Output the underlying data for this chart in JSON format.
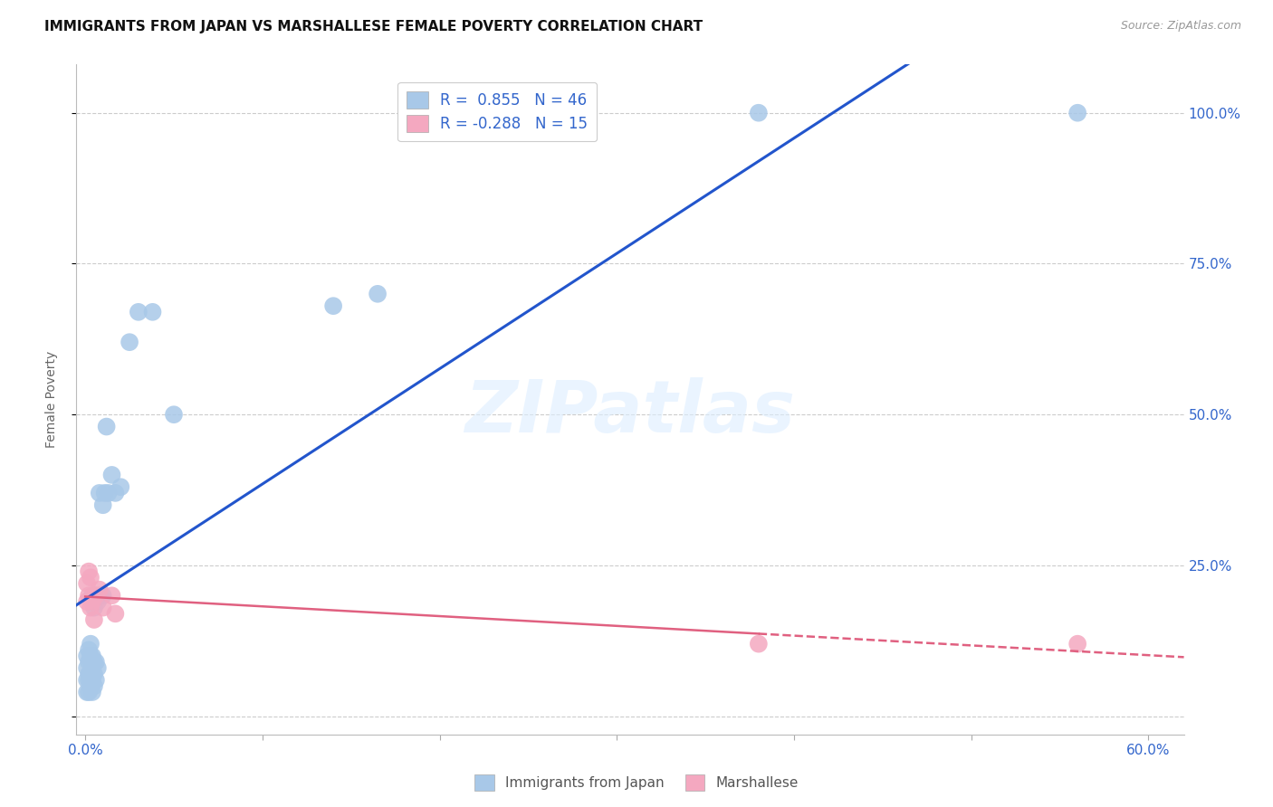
{
  "title": "IMMIGRANTS FROM JAPAN VS MARSHALLESE FEMALE POVERTY CORRELATION CHART",
  "source": "Source: ZipAtlas.com",
  "ylabel": "Female Poverty",
  "blue_R": 0.855,
  "blue_N": 46,
  "pink_R": -0.288,
  "pink_N": 15,
  "blue_color": "#a8c8e8",
  "pink_color": "#f4a8c0",
  "blue_line_color": "#2255cc",
  "pink_line_color": "#e06080",
  "legend_label_blue": "Immigrants from Japan",
  "legend_label_pink": "Marshallese",
  "watermark": "ZIPatlas",
  "blue_points_x": [
    0.001,
    0.001,
    0.001,
    0.001,
    0.002,
    0.002,
    0.002,
    0.002,
    0.002,
    0.003,
    0.003,
    0.003,
    0.003,
    0.004,
    0.004,
    0.004,
    0.004,
    0.004,
    0.005,
    0.005,
    0.005,
    0.005,
    0.006,
    0.006,
    0.006,
    0.007,
    0.007,
    0.008,
    0.008,
    0.009,
    0.01,
    0.01,
    0.011,
    0.012,
    0.013,
    0.015,
    0.017,
    0.02,
    0.025,
    0.03,
    0.038,
    0.05,
    0.14,
    0.165,
    0.38,
    0.56
  ],
  "blue_points_y": [
    0.04,
    0.06,
    0.08,
    0.1,
    0.04,
    0.06,
    0.07,
    0.09,
    0.11,
    0.05,
    0.07,
    0.1,
    0.12,
    0.04,
    0.06,
    0.08,
    0.1,
    0.2,
    0.05,
    0.07,
    0.09,
    0.18,
    0.06,
    0.09,
    0.2,
    0.08,
    0.19,
    0.2,
    0.37,
    0.2,
    0.2,
    0.35,
    0.37,
    0.48,
    0.37,
    0.4,
    0.37,
    0.38,
    0.62,
    0.67,
    0.67,
    0.5,
    0.68,
    0.7,
    1.0,
    1.0
  ],
  "pink_points_x": [
    0.001,
    0.001,
    0.002,
    0.002,
    0.003,
    0.003,
    0.004,
    0.005,
    0.006,
    0.008,
    0.01,
    0.015,
    0.017,
    0.38,
    0.56
  ],
  "pink_points_y": [
    0.19,
    0.22,
    0.2,
    0.24,
    0.18,
    0.23,
    0.19,
    0.16,
    0.2,
    0.21,
    0.18,
    0.2,
    0.17,
    0.12,
    0.12
  ],
  "xlim": [
    -0.005,
    0.62
  ],
  "ylim": [
    -0.03,
    1.08
  ],
  "ytick_vals": [
    0.0,
    0.25,
    0.5,
    0.75,
    1.0
  ],
  "ytick_labels": [
    "",
    "25.0%",
    "50.0%",
    "75.0%",
    "100.0%"
  ],
  "xtick_vals": [
    0.0,
    0.1,
    0.2,
    0.3,
    0.4,
    0.5,
    0.6
  ],
  "xtick_show": [
    "0.0%",
    "",
    "",
    "",
    "",
    "",
    "60.0%"
  ]
}
